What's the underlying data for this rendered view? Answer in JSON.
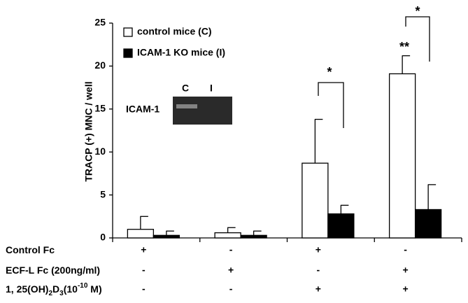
{
  "chart_data": {
    "type": "bar",
    "y_label": "TRACP (+) MNC / well",
    "categories": [
      null,
      null,
      null,
      null
    ],
    "series": [
      {
        "name": "control mice (C)",
        "color": "#ffffff",
        "values": [
          1.0,
          0.6,
          8.7,
          19.1
        ],
        "errors": [
          1.5,
          0.6,
          5.1,
          2.1
        ]
      },
      {
        "name": "ICAM-1 KO mice (I)",
        "color": "#000000",
        "values": [
          0.3,
          0.3,
          2.8,
          3.3
        ],
        "errors": [
          0.5,
          0.5,
          1.0,
          2.9
        ]
      }
    ],
    "ylim": [
      0,
      25
    ],
    "yticks": [
      0,
      5,
      10,
      15,
      20,
      25
    ],
    "annotations": [
      "*",
      "**",
      "*"
    ],
    "inset": {
      "label": "ICAM-1",
      "lanes": [
        "C",
        "I"
      ]
    },
    "conditions": [
      {
        "label_parts": [
          {
            "text": "Control Fc"
          }
        ],
        "values": [
          "+",
          "-",
          "+",
          "-"
        ]
      },
      {
        "label_parts": [
          {
            "text": "ECF-L Fc (200ng/ml)"
          }
        ],
        "values": [
          "-",
          "+",
          "-",
          "+"
        ]
      },
      {
        "label_parts": [
          {
            "text": "1, 25(OH)"
          },
          {
            "text": "2",
            "style": "sub"
          },
          {
            "text": "D"
          },
          {
            "text": "3",
            "style": "sub"
          },
          {
            "text": "(10"
          },
          {
            "text": "-10",
            "style": "sup"
          },
          {
            "text": " M)"
          }
        ],
        "values": [
          "-",
          "-",
          "+",
          "+"
        ]
      }
    ]
  }
}
